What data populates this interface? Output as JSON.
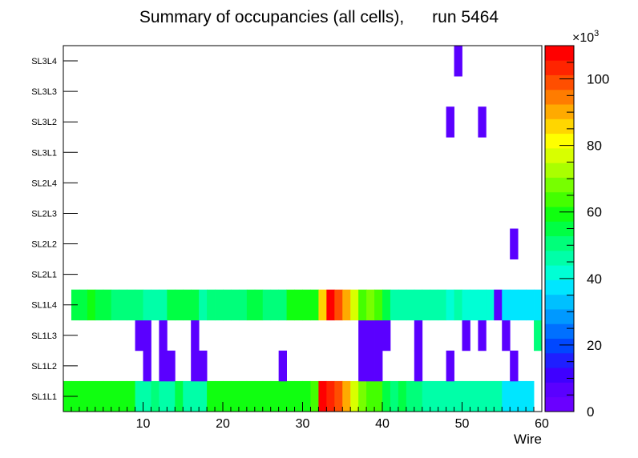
{
  "chart_data": {
    "type": "heatmap",
    "title": "Summary of occupancies (all cells),      run 5464",
    "xlabel": "Wire",
    "ylabel": "",
    "x_range": [
      0,
      60
    ],
    "x_ticks": [
      "10",
      "20",
      "30",
      "40",
      "50",
      "60"
    ],
    "y_categories": [
      "SL1L1",
      "SL1L2",
      "SL1L3",
      "SL1L4",
      "SL2L1",
      "SL2L2",
      "SL2L3",
      "SL2L4",
      "SL3L1",
      "SL3L2",
      "SL3L3",
      "SL3L4"
    ],
    "color_scale": {
      "min": 0,
      "max": 110000,
      "multiplier_text": "×10",
      "multiplier_exponent": "3",
      "tick_labels": [
        "0",
        "20",
        "40",
        "60",
        "80",
        "100"
      ],
      "palette": [
        "#6a00ff",
        "#5a00ff",
        "#3f00ff",
        "#1f1fff",
        "#0047ff",
        "#0070ff",
        "#0099ff",
        "#00c0ff",
        "#00e6ff",
        "#00ffd5",
        "#00ffa8",
        "#00ff7a",
        "#00ff44",
        "#10ff10",
        "#44ff00",
        "#77ff00",
        "#aaff00",
        "#d8ff00",
        "#ffff00",
        "#ffd600",
        "#ffaa00",
        "#ff7c00",
        "#ff4e00",
        "#ff2400",
        "#ff0000"
      ]
    },
    "cells": [
      [
        0,
        0,
        60000
      ],
      [
        1,
        0,
        58000
      ],
      [
        2,
        0,
        59000
      ],
      [
        3,
        0,
        58500
      ],
      [
        4,
        0,
        58000
      ],
      [
        5,
        0,
        59000
      ],
      [
        6,
        0,
        58000
      ],
      [
        7,
        0,
        58500
      ],
      [
        8,
        0,
        58000
      ],
      [
        9,
        0,
        48000
      ],
      [
        10,
        0,
        48000
      ],
      [
        11,
        0,
        49000
      ],
      [
        12,
        0,
        48000
      ],
      [
        13,
        0,
        48000
      ],
      [
        14,
        0,
        53000
      ],
      [
        15,
        0,
        48000
      ],
      [
        16,
        0,
        48000
      ],
      [
        17,
        0,
        48000
      ],
      [
        18,
        0,
        59000
      ],
      [
        19,
        0,
        58000
      ],
      [
        20,
        0,
        58000
      ],
      [
        21,
        0,
        59000
      ],
      [
        22,
        0,
        58000
      ],
      [
        23,
        0,
        58000
      ],
      [
        24,
        0,
        58500
      ],
      [
        25,
        0,
        58000
      ],
      [
        26,
        0,
        58000
      ],
      [
        27,
        0,
        58000
      ],
      [
        28,
        0,
        59000
      ],
      [
        29,
        0,
        58000
      ],
      [
        30,
        0,
        58500
      ],
      [
        31,
        0,
        62000
      ],
      [
        32,
        0,
        110000
      ],
      [
        33,
        0,
        105000
      ],
      [
        34,
        0,
        97000
      ],
      [
        35,
        0,
        88000
      ],
      [
        36,
        0,
        78000
      ],
      [
        37,
        0,
        68000
      ],
      [
        38,
        0,
        62000
      ],
      [
        39,
        0,
        63000
      ],
      [
        40,
        0,
        53000
      ],
      [
        41,
        0,
        52000
      ],
      [
        42,
        0,
        53000
      ],
      [
        43,
        0,
        52000
      ],
      [
        44,
        0,
        52500
      ],
      [
        45,
        0,
        46000
      ],
      [
        46,
        0,
        46000
      ],
      [
        47,
        0,
        46000
      ],
      [
        48,
        0,
        45000
      ],
      [
        49,
        0,
        45000
      ],
      [
        50,
        0,
        46000
      ],
      [
        51,
        0,
        46000
      ],
      [
        52,
        0,
        45000
      ],
      [
        53,
        0,
        46000
      ],
      [
        54,
        0,
        45500
      ],
      [
        55,
        0,
        39000
      ],
      [
        56,
        0,
        39000
      ],
      [
        57,
        0,
        39000
      ],
      [
        58,
        0,
        39000
      ],
      [
        10,
        1,
        5000
      ],
      [
        12,
        1,
        5000
      ],
      [
        13,
        1,
        5000
      ],
      [
        16,
        1,
        5000
      ],
      [
        17,
        1,
        5000
      ],
      [
        27,
        1,
        5000
      ],
      [
        37,
        1,
        5000
      ],
      [
        38,
        1,
        5000
      ],
      [
        39,
        1,
        5000
      ],
      [
        44,
        1,
        5000
      ],
      [
        48,
        1,
        5000
      ],
      [
        56,
        1,
        5000
      ],
      [
        9,
        2,
        5000
      ],
      [
        10,
        2,
        5000
      ],
      [
        12,
        2,
        5000
      ],
      [
        16,
        2,
        5000
      ],
      [
        37,
        2,
        5000
      ],
      [
        38,
        2,
        5000
      ],
      [
        39,
        2,
        5000
      ],
      [
        40,
        2,
        5000
      ],
      [
        44,
        2,
        5000
      ],
      [
        50,
        2,
        5000
      ],
      [
        52,
        2,
        5000
      ],
      [
        55,
        2,
        5000
      ],
      [
        59,
        2,
        52000
      ],
      [
        1,
        3,
        56000
      ],
      [
        2,
        3,
        53000
      ],
      [
        3,
        3,
        58000
      ],
      [
        4,
        3,
        53000
      ],
      [
        5,
        3,
        56000
      ],
      [
        6,
        3,
        52000
      ],
      [
        7,
        3,
        52000
      ],
      [
        8,
        3,
        52000
      ],
      [
        9,
        3,
        52000
      ],
      [
        10,
        3,
        46000
      ],
      [
        11,
        3,
        46000
      ],
      [
        12,
        3,
        46000
      ],
      [
        13,
        3,
        53000
      ],
      [
        14,
        3,
        53000
      ],
      [
        15,
        3,
        53000
      ],
      [
        16,
        3,
        53000
      ],
      [
        17,
        3,
        46000
      ],
      [
        18,
        3,
        52000
      ],
      [
        19,
        3,
        52000
      ],
      [
        20,
        3,
        52000
      ],
      [
        21,
        3,
        52000
      ],
      [
        22,
        3,
        52000
      ],
      [
        23,
        3,
        57000
      ],
      [
        24,
        3,
        57000
      ],
      [
        25,
        3,
        52000
      ],
      [
        26,
        3,
        52000
      ],
      [
        27,
        3,
        52000
      ],
      [
        28,
        3,
        58000
      ],
      [
        29,
        3,
        58000
      ],
      [
        30,
        3,
        58000
      ],
      [
        31,
        3,
        58000
      ],
      [
        32,
        3,
        85000
      ],
      [
        33,
        3,
        110000
      ],
      [
        34,
        3,
        98000
      ],
      [
        35,
        3,
        90000
      ],
      [
        36,
        3,
        78000
      ],
      [
        37,
        3,
        65000
      ],
      [
        38,
        3,
        70000
      ],
      [
        39,
        3,
        62000
      ],
      [
        40,
        3,
        53000
      ],
      [
        41,
        3,
        47000
      ],
      [
        42,
        3,
        47000
      ],
      [
        43,
        3,
        47000
      ],
      [
        44,
        3,
        47000
      ],
      [
        45,
        3,
        47000
      ],
      [
        46,
        3,
        47000
      ],
      [
        47,
        3,
        47000
      ],
      [
        48,
        3,
        43000
      ],
      [
        49,
        3,
        46000
      ],
      [
        50,
        3,
        40000
      ],
      [
        51,
        3,
        40000
      ],
      [
        52,
        3,
        40000
      ],
      [
        53,
        3,
        40000
      ],
      [
        54,
        3,
        5000
      ],
      [
        55,
        3,
        37000
      ],
      [
        56,
        3,
        37000
      ],
      [
        57,
        3,
        37000
      ],
      [
        58,
        3,
        37000
      ],
      [
        59,
        3,
        37000
      ],
      [
        56,
        5,
        5000
      ],
      [
        48,
        9,
        5000
      ],
      [
        52,
        9,
        5000
      ],
      [
        49,
        11,
        5000
      ]
    ]
  }
}
